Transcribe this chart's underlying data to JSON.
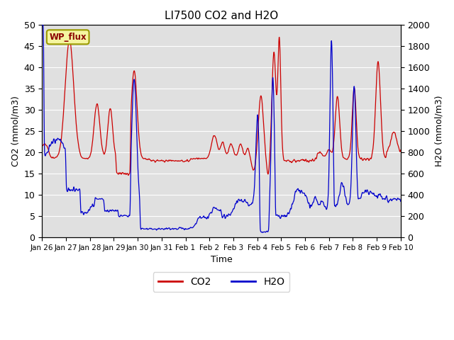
{
  "title": "LI7500 CO2 and H2O",
  "xlabel": "Time",
  "ylabel_left": "CO2 (mmol/m3)",
  "ylabel_right": "H2O (mmol/m3)",
  "ylim_left": [
    0,
    50
  ],
  "ylim_right": [
    0,
    2000
  ],
  "co2_color": "#cc0000",
  "h2o_color": "#0000cc",
  "bg_color": "#e0e0e0",
  "legend_labels": [
    "CO2",
    "H2O"
  ],
  "wp_flux_label": "WP_flux",
  "tick_labels": [
    "Jan 26",
    "Jan 27",
    "Jan 28",
    "Jan 29",
    "Jan 30",
    "Jan 31",
    "Feb 1",
    "Feb 2",
    "Feb 3",
    "Feb 4",
    "Feb 5",
    "Feb 6",
    "Feb 7",
    "Feb 8",
    "Feb 9",
    "Feb 10"
  ],
  "yticks_left": [
    0,
    5,
    10,
    15,
    20,
    25,
    30,
    35,
    40,
    45,
    50
  ],
  "yticks_right": [
    0,
    200,
    400,
    600,
    800,
    1000,
    1200,
    1400,
    1600,
    1800,
    2000
  ],
  "n_points": 3000,
  "total_days": 15
}
